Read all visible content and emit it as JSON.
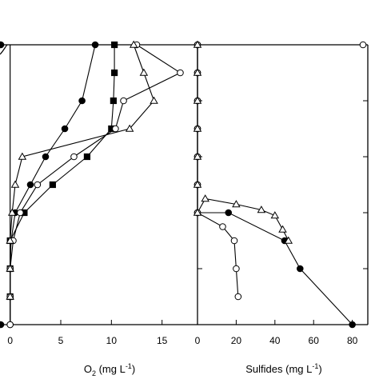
{
  "chart_data": [
    {
      "type": "line",
      "xlabel": "O",
      "xlabel_sub": "2",
      "xlabel_unit": "(mg L",
      "xlabel_sup": "-1",
      "xlabel_close": ")",
      "xlim": [
        -1,
        18.5
      ],
      "ylim": [
        0,
        10
      ],
      "x_ticks": [
        0,
        5,
        10,
        15
      ],
      "x_tick_labels": [
        "0",
        "5",
        "10",
        "15"
      ],
      "legend": "none",
      "grid": false,
      "series": [
        {
          "marker": "filled-circle",
          "points": [
            [
              8.4,
              0
            ],
            [
              7.1,
              2
            ],
            [
              5.4,
              3
            ],
            [
              3.5,
              4
            ],
            [
              2.0,
              5
            ],
            [
              0.5,
              6
            ],
            [
              0.1,
              7
            ],
            [
              0,
              8
            ],
            [
              0,
              9
            ],
            [
              0,
              10
            ]
          ]
        },
        {
          "marker": "filled-square",
          "points": [
            [
              10.3,
              0
            ],
            [
              10.3,
              1
            ],
            [
              10.2,
              2
            ],
            [
              10.0,
              3
            ],
            [
              7.6,
              4
            ],
            [
              4.2,
              5
            ],
            [
              1.4,
              6
            ],
            [
              0,
              7
            ],
            [
              0,
              8
            ],
            [
              0,
              9
            ]
          ]
        },
        {
          "marker": "open-circle",
          "points": [
            [
              12.5,
              0
            ],
            [
              16.8,
              1
            ],
            [
              11.2,
              2
            ],
            [
              10.4,
              3
            ],
            [
              6.3,
              4
            ],
            [
              2.7,
              5
            ],
            [
              1.0,
              6
            ],
            [
              0.3,
              7
            ],
            [
              0,
              8
            ],
            [
              0,
              9
            ],
            [
              0,
              10
            ]
          ]
        },
        {
          "marker": "open-triangle",
          "points": [
            [
              12.2,
              0
            ],
            [
              13.2,
              1
            ],
            [
              14.2,
              2
            ],
            [
              11.8,
              3
            ],
            [
              1.2,
              4
            ],
            [
              0.5,
              5
            ],
            [
              0.2,
              6
            ],
            [
              0,
              7
            ],
            [
              0,
              8
            ],
            [
              0,
              9
            ]
          ]
        }
      ]
    },
    {
      "type": "line",
      "xlabel": "Sulfides (mg L",
      "xlabel_sup": "-1",
      "xlabel_close": ")",
      "xlim": [
        0,
        88
      ],
      "ylim": [
        0,
        10
      ],
      "x_ticks": [
        0,
        20,
        40,
        60,
        80
      ],
      "x_tick_labels": [
        "0",
        "20",
        "40",
        "60",
        "80"
      ],
      "legend": "none",
      "grid": false,
      "series": [
        {
          "marker": "filled-circle",
          "points": [
            [
              0,
              0
            ],
            [
              0,
              1
            ],
            [
              0,
              2
            ],
            [
              0,
              3
            ],
            [
              0,
              4
            ],
            [
              0,
              5
            ],
            [
              0,
              6
            ],
            [
              16,
              6
            ],
            [
              45,
              7
            ],
            [
              53,
              8
            ],
            [
              80,
              10
            ]
          ]
        },
        {
          "marker": "open-circle",
          "points": [
            [
              0,
              0
            ],
            [
              0,
              1
            ],
            [
              0,
              2
            ],
            [
              0,
              3
            ],
            [
              0,
              4
            ],
            [
              0,
              5
            ],
            [
              0,
              6
            ],
            [
              13,
              6.5
            ],
            [
              19,
              7
            ],
            [
              20,
              8
            ],
            [
              21,
              9
            ]
          ]
        },
        {
          "marker": "open-triangle",
          "points": [
            [
              0,
              0
            ],
            [
              0,
              1
            ],
            [
              0,
              2
            ],
            [
              0,
              3
            ],
            [
              0,
              4
            ],
            [
              0,
              5
            ],
            [
              0,
              6
            ],
            [
              4,
              5.5
            ],
            [
              20,
              5.7
            ],
            [
              33,
              5.9
            ],
            [
              40,
              6.1
            ],
            [
              44,
              6.6
            ],
            [
              47,
              7
            ]
          ]
        }
      ]
    }
  ]
}
